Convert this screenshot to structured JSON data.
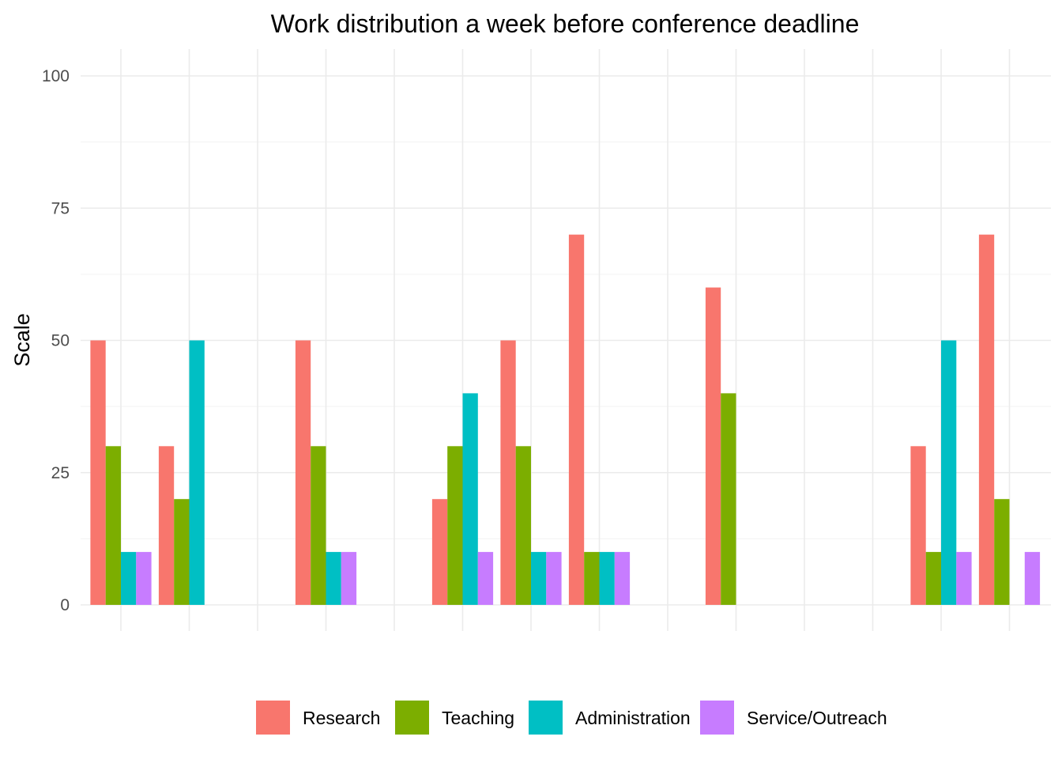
{
  "chart_data": {
    "type": "bar",
    "title": "Work distribution a week before conference deadline",
    "xlabel": "",
    "ylabel": "Scale",
    "ylim": [
      0,
      100
    ],
    "yticks": [
      0,
      25,
      50,
      75,
      100
    ],
    "grid": true,
    "legend_position": "bottom",
    "categories": [
      "",
      "",
      "",
      "",
      "",
      "",
      "",
      "",
      "",
      "",
      "",
      "",
      "",
      ""
    ],
    "series": [
      {
        "name": "Research",
        "color": "#F8766D",
        "values": [
          50,
          30,
          0,
          50,
          0,
          20,
          50,
          70,
          0,
          60,
          0,
          0,
          30,
          70
        ]
      },
      {
        "name": "Teaching",
        "color": "#7CAE00",
        "values": [
          30,
          20,
          0,
          30,
          0,
          30,
          30,
          10,
          0,
          40,
          0,
          0,
          10,
          20
        ]
      },
      {
        "name": "Administration",
        "color": "#00BFC4",
        "values": [
          10,
          50,
          0,
          10,
          0,
          40,
          10,
          10,
          0,
          0,
          0,
          0,
          50,
          0
        ]
      },
      {
        "name": "Service/Outreach",
        "color": "#C77CFF",
        "values": [
          10,
          0,
          0,
          10,
          0,
          10,
          10,
          10,
          0,
          0,
          0,
          0,
          10,
          10
        ]
      }
    ]
  }
}
